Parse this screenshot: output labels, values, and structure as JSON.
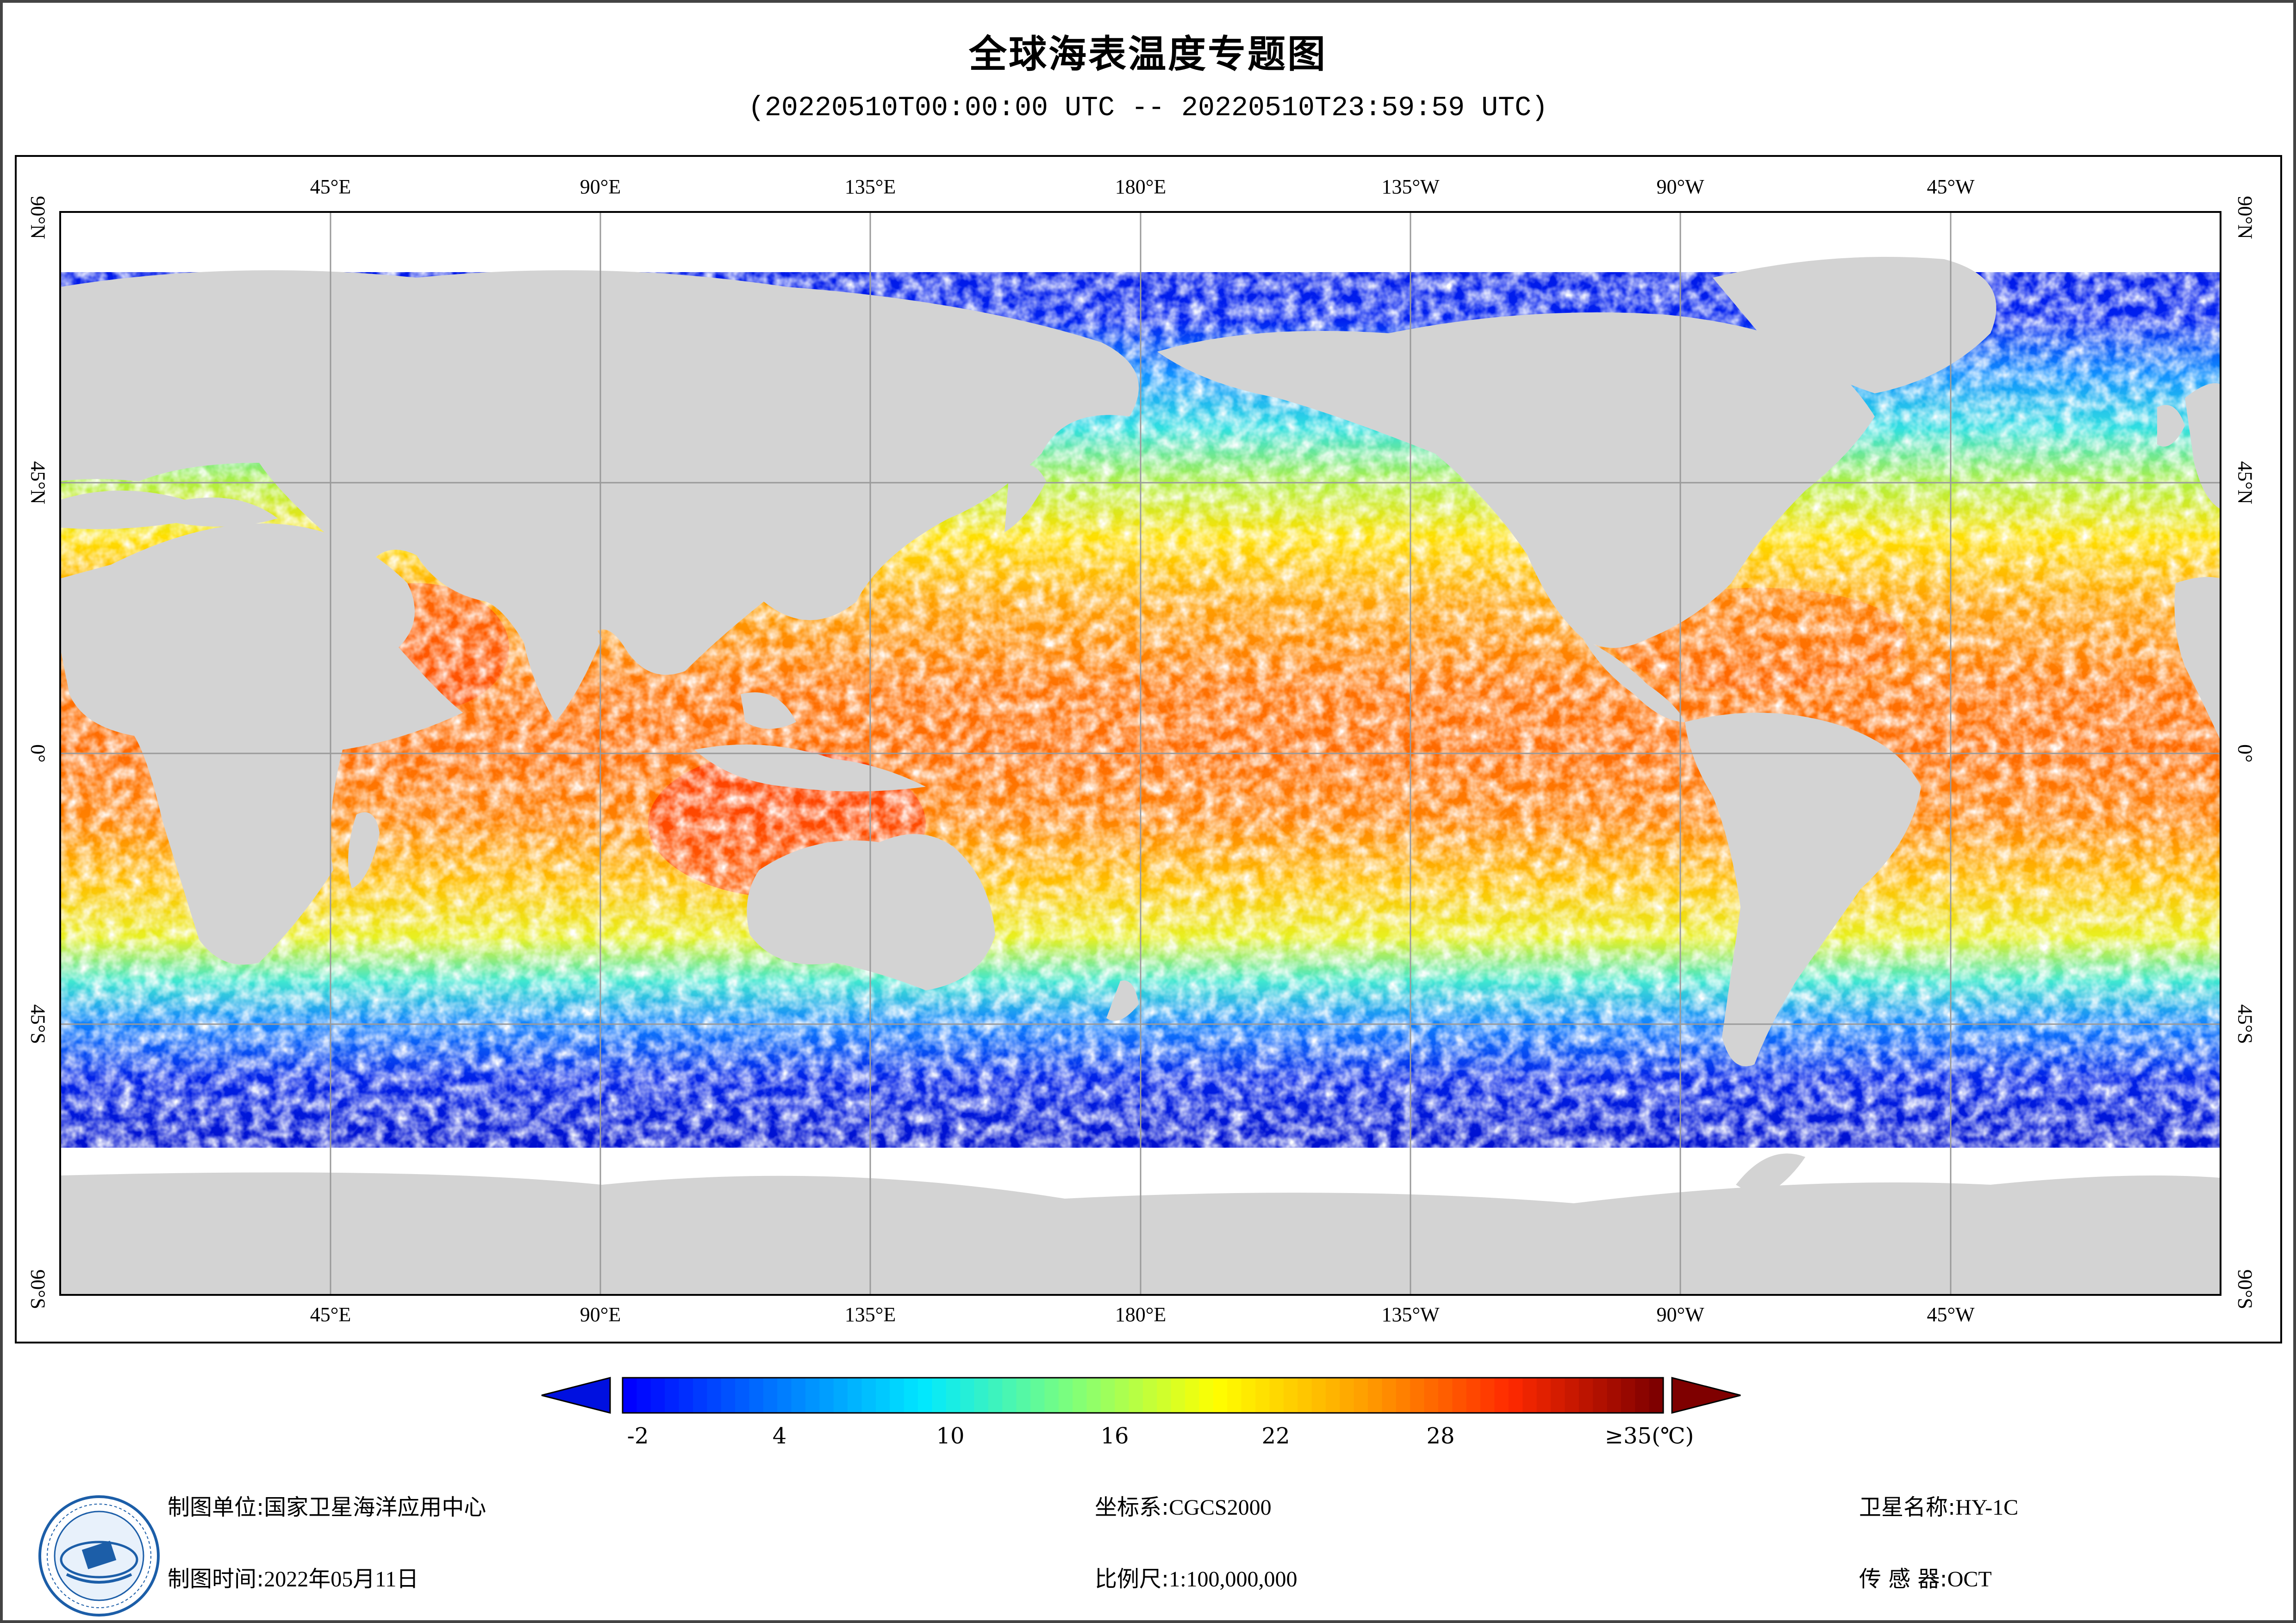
{
  "title": "全球海表温度专题图",
  "subtitle": "(20220510T00:00:00 UTC -- 20220510T23:59:59 UTC)",
  "map": {
    "lon_ticks": [
      "45°E",
      "90°E",
      "135°E",
      "180°E",
      "135°W",
      "90°W",
      "45°W"
    ],
    "lat_ticks": [
      "90°N",
      "45°N",
      "0°",
      "45°S",
      "90°S"
    ],
    "colors": {
      "land": "#d3d3d3",
      "ocean_nodata": "#ffffff",
      "grid": "#9a9a9a"
    }
  },
  "colorbar": {
    "labels": [
      "-2",
      "4",
      "10",
      "16",
      "22",
      "28",
      "≥35(℃)"
    ],
    "colors": [
      "#0000ff",
      "#0078ff",
      "#00e8ff",
      "#7cff7c",
      "#ffff00",
      "#ffa000",
      "#ff2a00",
      "#7f0000"
    ]
  },
  "footer": {
    "unit_label": "制图单位:",
    "unit_value": "国家卫星海洋应用中心",
    "time_label": "制图时间:",
    "time_value": "2022年05月11日",
    "crs_label": "坐标系:",
    "crs_value": "CGCS2000",
    "scale_label": "比例尺:",
    "scale_value": "1:100,000,000",
    "satellite_label": "卫星名称:",
    "satellite_value": "HY-1C",
    "sensor_label": "传 感 器:",
    "sensor_value": "OCT"
  }
}
